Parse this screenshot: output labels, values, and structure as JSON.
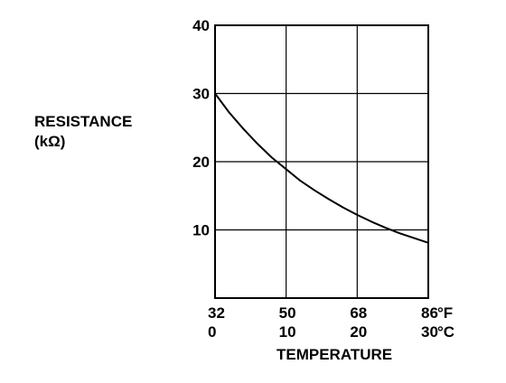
{
  "chart_data": {
    "type": "line",
    "ylabel": "RESISTANCE",
    "ylabel_unit": "(kΩ)",
    "xlabel": "TEMPERATURE",
    "x_unit_primary": "°F",
    "x_unit_secondary": "°C",
    "xlim": [
      0,
      30
    ],
    "ylim": [
      0,
      40
    ],
    "x_ticks_celsius": [
      0,
      10,
      20,
      30
    ],
    "x_tick_labels_f": [
      "32",
      "50",
      "68",
      "86"
    ],
    "x_tick_labels_c": [
      "0",
      "10",
      "20",
      "30"
    ],
    "y_ticks": [
      10,
      20,
      30,
      40
    ],
    "y_tick_labels": [
      "10",
      "20",
      "30",
      "40"
    ],
    "grid": true,
    "series": [
      {
        "x": [
          0,
          2,
          4,
          6,
          8,
          10,
          12,
          14,
          16,
          18,
          20,
          22,
          24,
          26,
          28,
          30
        ],
        "values": [
          30,
          27.2,
          24.8,
          22.6,
          20.6,
          18.9,
          17.2,
          15.8,
          14.5,
          13.3,
          12.2,
          11.2,
          10.3,
          9.5,
          8.8,
          8.1
        ]
      }
    ],
    "colors": {
      "line": "#000000",
      "grid": "#000000",
      "background": "#ffffff"
    }
  }
}
